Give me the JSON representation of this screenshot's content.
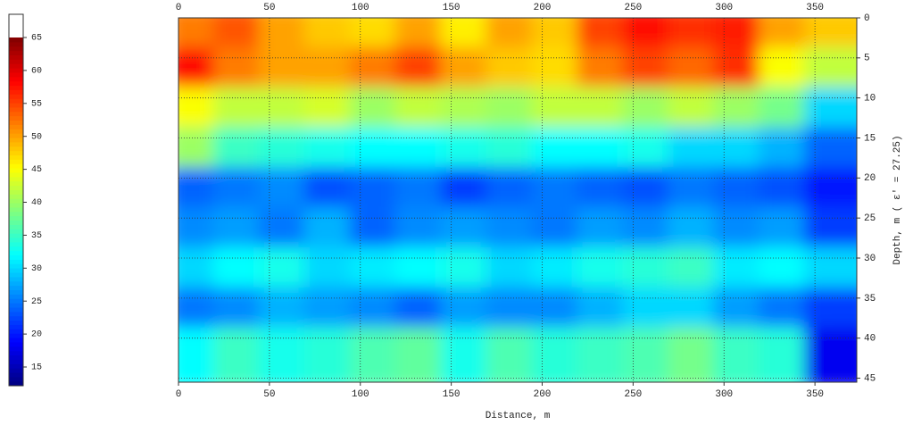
{
  "chart_data": {
    "type": "heatmap",
    "xlabel": "Distance, m",
    "ylabel": "Depth, m ( ε' = 27.25)",
    "xlim": [
      0,
      373
    ],
    "xticks": [
      0,
      50,
      100,
      150,
      200,
      250,
      300,
      350
    ],
    "ylim": [
      0,
      45.5
    ],
    "yticks": [
      0,
      5,
      10,
      15,
      20,
      25,
      30,
      35,
      40,
      45
    ],
    "grid": true,
    "colormap": "jet",
    "clim": [
      12.2,
      65
    ],
    "colorbar_ticks": [
      15,
      20,
      25,
      30,
      35,
      40,
      45,
      50,
      55,
      60,
      65
    ],
    "x": [
      12.5,
      37.5,
      62.5,
      87.5,
      112.5,
      137.5,
      162.5,
      187.5,
      212.5,
      237.5,
      262.5,
      287.5,
      312.5,
      337.5,
      362.5
    ],
    "y": [
      2.5,
      7.5,
      12.5,
      17.5,
      22.5,
      27.5,
      32.5,
      37.5,
      42.5
    ],
    "z": [
      [
        52,
        54,
        50,
        48,
        47,
        50,
        46,
        50,
        48,
        55,
        58,
        56,
        57,
        50,
        48
      ],
      [
        58,
        52,
        50,
        50,
        52,
        55,
        50,
        48,
        47,
        52,
        55,
        53,
        56,
        45,
        42
      ],
      [
        45,
        42,
        42,
        43,
        40,
        42,
        41,
        40,
        42,
        42,
        40,
        42,
        40,
        38,
        30
      ],
      [
        40,
        35,
        34,
        33,
        32,
        32,
        33,
        34,
        32,
        32,
        33,
        30,
        30,
        28,
        24
      ],
      [
        24,
        25,
        26,
        23,
        24,
        25,
        22,
        24,
        25,
        24,
        23,
        25,
        24,
        23,
        20
      ],
      [
        26,
        27,
        25,
        28,
        24,
        26,
        27,
        26,
        25,
        27,
        26,
        28,
        26,
        27,
        22
      ],
      [
        30,
        32,
        33,
        30,
        31,
        32,
        33,
        30,
        31,
        33,
        34,
        35,
        31,
        32,
        30
      ],
      [
        25,
        26,
        28,
        27,
        26,
        24,
        27,
        26,
        26,
        28,
        30,
        30,
        27,
        25,
        22
      ],
      [
        32,
        35,
        33,
        34,
        36,
        37,
        33,
        36,
        34,
        35,
        36,
        38,
        35,
        34,
        18
      ]
    ]
  }
}
